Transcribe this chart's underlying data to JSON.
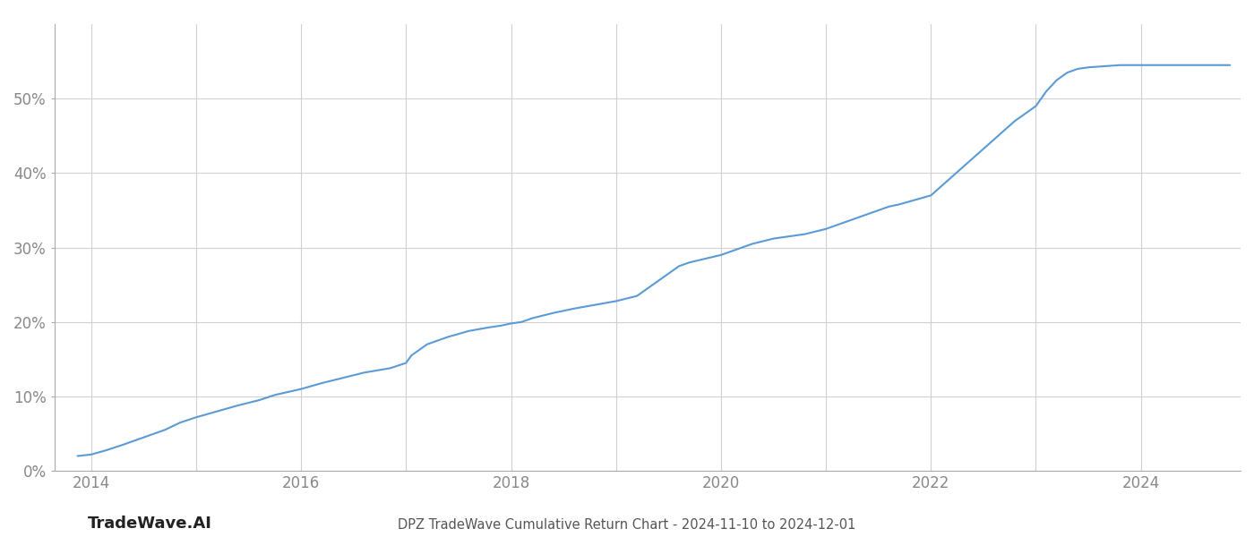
{
  "title": "DPZ TradeWave Cumulative Return Chart - 2024-11-10 to 2024-12-01",
  "watermark": "TradeWave.AI",
  "line_color": "#5b9bd5",
  "line_width": 1.5,
  "background_color": "#ffffff",
  "grid_color": "#d0d0d0",
  "x_tick_years": [
    2014,
    2016,
    2018,
    2020,
    2022,
    2024
  ],
  "minor_x_ticks": [
    2015,
    2017,
    2019,
    2021,
    2023
  ],
  "ylim": [
    0,
    60
  ],
  "yticks": [
    0,
    10,
    20,
    30,
    40,
    50
  ],
  "data_x": [
    2013.87,
    2014.0,
    2014.15,
    2014.3,
    2014.5,
    2014.7,
    2014.85,
    2015.0,
    2015.2,
    2015.4,
    2015.6,
    2015.75,
    2016.0,
    2016.2,
    2016.4,
    2016.6,
    2016.85,
    2017.0,
    2017.05,
    2017.2,
    2017.4,
    2017.6,
    2017.8,
    2017.9,
    2018.0,
    2018.1,
    2018.2,
    2018.4,
    2018.6,
    2018.8,
    2019.0,
    2019.2,
    2019.4,
    2019.5,
    2019.6,
    2019.7,
    2019.85,
    2020.0,
    2020.1,
    2020.2,
    2020.3,
    2020.5,
    2020.65,
    2020.8,
    2021.0,
    2021.2,
    2021.4,
    2021.5,
    2021.6,
    2021.7,
    2021.8,
    2022.0,
    2022.2,
    2022.4,
    2022.6,
    2022.8,
    2023.0,
    2023.1,
    2023.2,
    2023.3,
    2023.4,
    2023.5,
    2023.6,
    2023.7,
    2023.8,
    2023.85,
    2024.0,
    2024.3,
    2024.6,
    2024.85
  ],
  "data_y": [
    2.0,
    2.2,
    2.8,
    3.5,
    4.5,
    5.5,
    6.5,
    7.2,
    8.0,
    8.8,
    9.5,
    10.2,
    11.0,
    11.8,
    12.5,
    13.2,
    13.8,
    14.5,
    15.5,
    17.0,
    18.0,
    18.8,
    19.3,
    19.5,
    19.8,
    20.0,
    20.5,
    21.2,
    21.8,
    22.3,
    22.8,
    23.5,
    25.5,
    26.5,
    27.5,
    28.0,
    28.5,
    29.0,
    29.5,
    30.0,
    30.5,
    31.2,
    31.5,
    31.8,
    32.5,
    33.5,
    34.5,
    35.0,
    35.5,
    35.8,
    36.2,
    37.0,
    39.5,
    42.0,
    44.5,
    47.0,
    49.0,
    51.0,
    52.5,
    53.5,
    54.0,
    54.2,
    54.3,
    54.4,
    54.5,
    54.5,
    54.5,
    54.5,
    54.5,
    54.5
  ],
  "xlim_left": 2013.65,
  "xlim_right": 2024.95,
  "title_fontsize": 10.5,
  "tick_fontsize": 12,
  "watermark_fontsize": 13
}
